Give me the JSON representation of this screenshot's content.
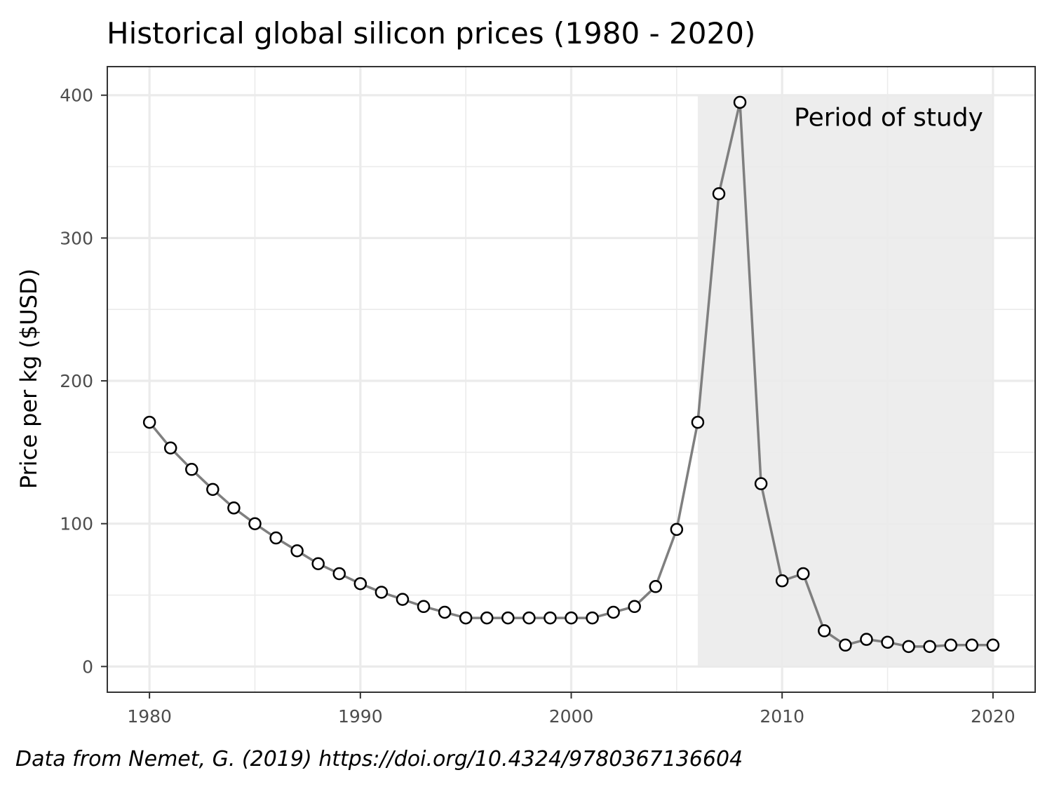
{
  "chart_data": {
    "type": "line",
    "title": "Historical global silicon prices (1980 - 2020)",
    "xlabel": "",
    "ylabel": "Price per kg ($USD)",
    "caption": "Data from Nemet, G. (2019) https://doi.org/10.4324/9780367136604",
    "xlim": [
      1978,
      2022
    ],
    "ylim": [
      -18,
      420
    ],
    "x_ticks": [
      1980,
      1990,
      2000,
      2010,
      2020
    ],
    "y_ticks": [
      0,
      100,
      200,
      300,
      400
    ],
    "grid": true,
    "shaded_region": {
      "x_start": 2006,
      "x_end": 2020,
      "y_start": 0,
      "y_end": 400,
      "label": "Period of study",
      "color": "#ebebeb"
    },
    "colors": {
      "line": "#7f7f7f",
      "point_fill": "#ffffff",
      "point_stroke": "#000000",
      "grid": "#ebebeb",
      "border": "#333333"
    },
    "series": [
      {
        "x": [
          1980,
          1981,
          1982,
          1983,
          1984,
          1985,
          1986,
          1987,
          1988,
          1989,
          1990,
          1991,
          1992,
          1993,
          1994,
          1995,
          1996,
          1997,
          1998,
          1999,
          2000,
          2001,
          2002,
          2003,
          2004,
          2005,
          2006,
          2007,
          2008,
          2009,
          2010,
          2011,
          2012,
          2013,
          2014,
          2015,
          2016,
          2017,
          2018,
          2019,
          2020
        ],
        "y": [
          171,
          153,
          138,
          124,
          111,
          100,
          90,
          81,
          72,
          65,
          58,
          52,
          47,
          42,
          38,
          34,
          34,
          34,
          34,
          34,
          34,
          34,
          38,
          42,
          56,
          96,
          171,
          331,
          395,
          128,
          60,
          65,
          25,
          15,
          19,
          17,
          14,
          14,
          15,
          15,
          15
        ]
      }
    ]
  }
}
